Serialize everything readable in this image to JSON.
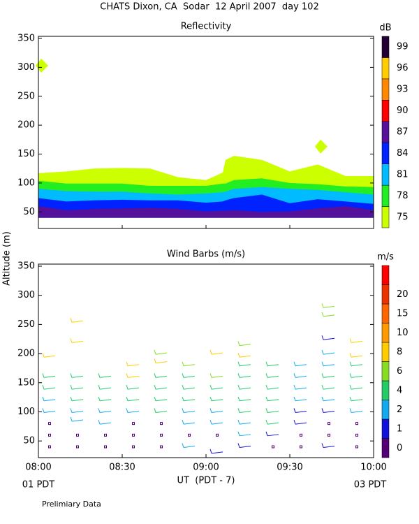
{
  "title": "CHATS Dixon, CA  Sodar  12 April 2007  day 102",
  "y_label": "Altitude (m)",
  "x_label": "UT  (PDT - 7)",
  "x_start_note": "01 PDT",
  "x_end_note": "03 PDT",
  "footnote": "Prelimiary Data",
  "chart_data": [
    {
      "type": "contour-area",
      "title": "Reflectivity",
      "unit": "dB",
      "xlim": [
        0,
        120
      ],
      "ylim": [
        25,
        350
      ],
      "yticks": [
        50,
        100,
        150,
        200,
        250,
        300,
        350
      ],
      "xticks": [
        0,
        30,
        60,
        90,
        120
      ],
      "area_base": 40,
      "x": [
        0,
        10,
        20,
        30,
        40,
        50,
        60,
        66,
        67,
        70,
        80,
        90,
        100,
        110,
        120
      ],
      "series": [
        {
          "level": 75,
          "color": "#ccff00",
          "values": [
            117,
            120,
            125,
            126,
            125,
            110,
            105,
            118,
            140,
            147,
            140,
            120,
            132,
            112,
            112
          ]
        },
        {
          "level": 78,
          "color": "#22ee22",
          "values": [
            104,
            99,
            99,
            99,
            95,
            95,
            95,
            99,
            99,
            105,
            108,
            100,
            98,
            94,
            93
          ]
        },
        {
          "level": 81,
          "color": "#00bbff",
          "values": [
            90,
            86,
            85,
            85,
            82,
            80,
            82,
            84,
            85,
            90,
            93,
            90,
            88,
            84,
            80
          ]
        },
        {
          "level": 84,
          "color": "#0022ff",
          "values": [
            74,
            68,
            70,
            71,
            70,
            70,
            66,
            68,
            70,
            74,
            80,
            65,
            72,
            68,
            64
          ]
        },
        {
          "level": 87,
          "color": "#551199",
          "values": [
            60,
            53,
            55,
            56,
            57,
            55,
            51,
            52,
            52,
            53,
            50,
            51,
            56,
            60,
            53
          ]
        }
      ],
      "spots": {
        "color": "#ccff00",
        "x": [
          1,
          101
        ],
        "values": [
          303,
          163
        ]
      },
      "colorbar": {
        "labels": [
          75,
          78,
          81,
          84,
          87,
          90,
          93,
          96,
          99
        ],
        "colors": [
          "#ccff00",
          "#22ee22",
          "#00bbff",
          "#0022ff",
          "#551199",
          "#ff0000",
          "#ff8800",
          "#ffcc00",
          "#220033"
        ]
      }
    },
    {
      "type": "wind-barbs",
      "title": "Wind Barbs (m/s)",
      "unit": "m/s",
      "xlim": [
        0,
        120
      ],
      "ylim": [
        25,
        350
      ],
      "yticks": [
        50,
        100,
        150,
        200,
        250,
        300,
        350
      ],
      "xticks": [
        {
          "value": 0,
          "label": "08:00"
        },
        {
          "value": 30,
          "label": "08:30"
        },
        {
          "value": 60,
          "label": "09:00"
        },
        {
          "value": 90,
          "label": "09:30"
        },
        {
          "value": 120,
          "label": "10:00"
        }
      ],
      "x": [
        4,
        4,
        4,
        4,
        4,
        4,
        4,
        4,
        14,
        14,
        14,
        14,
        14,
        14,
        14,
        14,
        14,
        24,
        24,
        24,
        24,
        24,
        24,
        24,
        34,
        34,
        34,
        34,
        34,
        34,
        34,
        34,
        44,
        44,
        44,
        44,
        44,
        44,
        44,
        44,
        44,
        54,
        54,
        54,
        54,
        54,
        54,
        54,
        54,
        64,
        64,
        64,
        64,
        64,
        64,
        64,
        64,
        74,
        74,
        74,
        74,
        74,
        74,
        74,
        74,
        74,
        74,
        84,
        84,
        84,
        84,
        84,
        84,
        84,
        84,
        94,
        94,
        94,
        94,
        94,
        94,
        94,
        94,
        104,
        104,
        104,
        104,
        104,
        104,
        104,
        104,
        104,
        104,
        104,
        104,
        114,
        114,
        114,
        114,
        114,
        114,
        114,
        114,
        114,
        114
      ],
      "altitude": [
        40,
        60,
        80,
        100,
        120,
        140,
        160,
        195,
        40,
        60,
        85,
        100,
        120,
        140,
        160,
        220,
        255,
        40,
        60,
        80,
        100,
        120,
        140,
        160,
        40,
        60,
        80,
        100,
        120,
        140,
        160,
        180,
        40,
        60,
        80,
        100,
        120,
        140,
        160,
        185,
        200,
        40,
        60,
        80,
        100,
        120,
        140,
        160,
        180,
        30,
        60,
        80,
        100,
        120,
        140,
        160,
        200,
        40,
        60,
        80,
        100,
        120,
        140,
        160,
        180,
        195,
        215,
        40,
        60,
        80,
        100,
        120,
        140,
        160,
        180,
        40,
        60,
        80,
        100,
        120,
        140,
        160,
        180,
        40,
        60,
        80,
        100,
        120,
        140,
        160,
        180,
        200,
        225,
        265,
        280,
        40,
        60,
        80,
        100,
        120,
        140,
        160,
        180,
        195,
        220
      ],
      "speed": [
        0,
        0,
        0,
        3,
        3.5,
        4,
        5,
        9,
        0,
        0,
        2.5,
        2.5,
        4,
        4,
        5,
        9,
        9,
        0,
        0,
        3,
        3,
        4,
        4,
        5,
        0,
        0,
        0,
        3,
        4,
        5,
        9,
        8,
        0,
        0,
        0,
        4,
        4,
        5,
        5,
        8,
        6,
        2,
        0,
        2.5,
        3,
        4,
        5,
        5,
        6,
        1,
        0,
        2,
        2.5,
        4,
        5,
        6,
        8,
        1,
        2,
        2.5,
        4,
        5,
        5,
        5,
        5,
        8,
        6,
        0,
        1,
        4,
        4,
        4,
        5,
        5,
        4,
        0,
        0,
        1,
        1,
        2,
        2.5,
        2.5,
        2.5,
        1,
        0,
        0,
        1,
        2,
        4,
        5,
        2.5,
        2.5,
        1,
        6,
        6,
        0,
        0,
        0,
        2,
        4,
        4,
        4,
        4,
        9,
        9
      ],
      "colorbar": {
        "labels": [
          0,
          1,
          2,
          4,
          6,
          8,
          10,
          15,
          20
        ],
        "colors": [
          "#550077",
          "#1111dd",
          "#11aaee",
          "#22cc66",
          "#88dd22",
          "#ffcc00",
          "#ff9900",
          "#ff6600",
          "#ee3300",
          "#ff0000"
        ]
      }
    }
  ]
}
